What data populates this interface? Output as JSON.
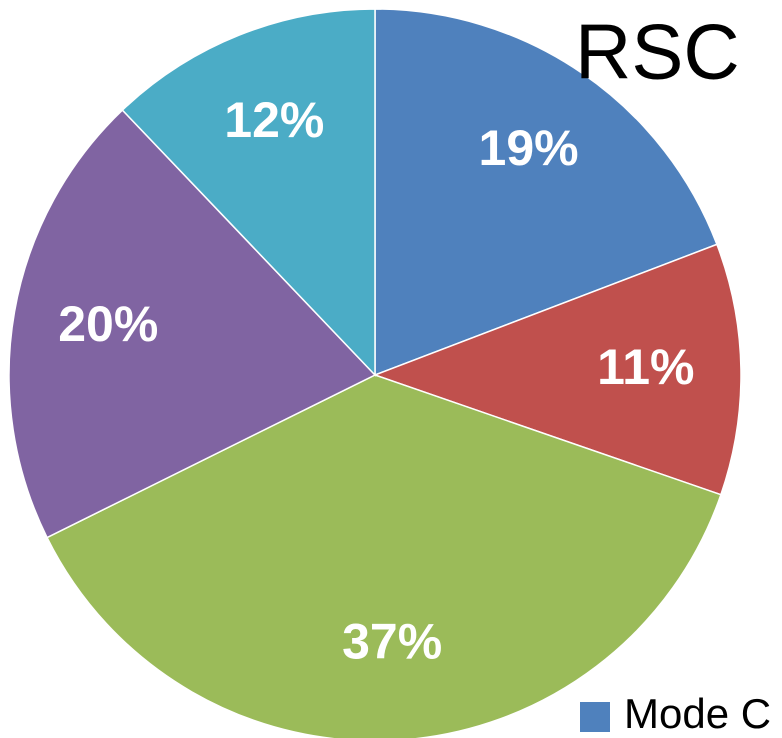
{
  "chart_data": {
    "type": "pie",
    "title": "RSC",
    "categories": [
      "Mode C",
      null,
      null,
      null,
      null
    ],
    "values": [
      19,
      11,
      37,
      20,
      12
    ],
    "value_labels": [
      "19%",
      "11%",
      "37%",
      "20%",
      "12%"
    ],
    "colors": [
      "#4f81bd",
      "#c0504d",
      "#9bbb59",
      "#8064a2",
      "#4bacc6"
    ]
  }
}
